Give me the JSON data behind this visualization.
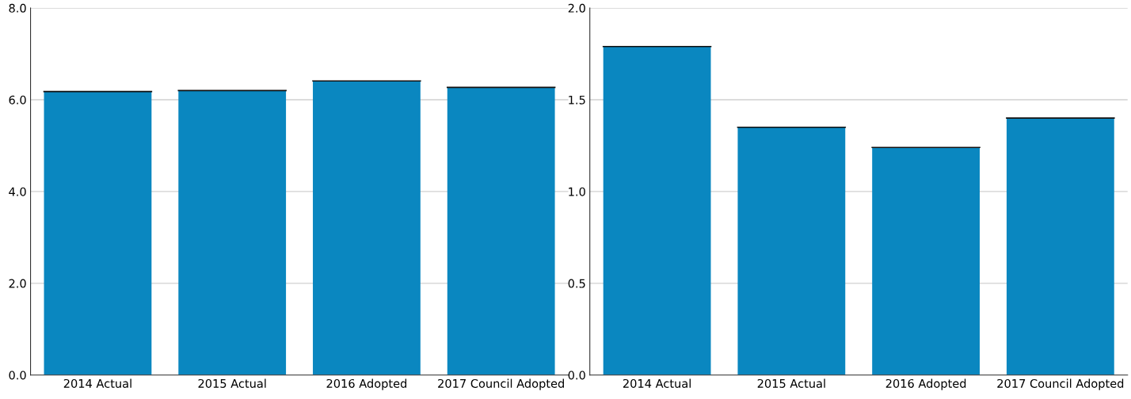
{
  "chart_data": [
    {
      "type": "bar",
      "categories": [
        "2014 Actual",
        "2015 Actual",
        "2016 Adopted",
        "2017 Council Adopted"
      ],
      "values": [
        6.18,
        6.2,
        6.41,
        6.27
      ],
      "color": "#0a87c0",
      "ylim": [
        0,
        8
      ],
      "yticks": [
        {
          "value": 0,
          "label": "0.0"
        },
        {
          "value": 2,
          "label": "2.0"
        },
        {
          "value": 4,
          "label": "4.0"
        },
        {
          "value": 6,
          "label": "6.0"
        },
        {
          "value": 8,
          "label": "8.0"
        }
      ],
      "grid": "y"
    },
    {
      "type": "bar",
      "categories": [
        "2014 Actual",
        "2015 Actual",
        "2016 Adopted",
        "2017 Council Adopted"
      ],
      "values": [
        1.79,
        1.35,
        1.24,
        1.4
      ],
      "color": "#0a87c0",
      "ylim": [
        0,
        2
      ],
      "yticks": [
        {
          "value": 0,
          "label": "0.0"
        },
        {
          "value": 0.5,
          "label": "0.5"
        },
        {
          "value": 1,
          "label": "1.0"
        },
        {
          "value": 1.5,
          "label": "1.5"
        },
        {
          "value": 2,
          "label": "2.0"
        }
      ],
      "grid": "y"
    }
  ]
}
